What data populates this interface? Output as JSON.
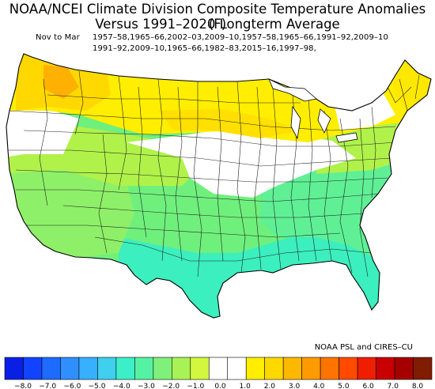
{
  "title_line1": "NOAA/NCEI Climate Division Composite Temperature Anomalies (F)",
  "title_line2": "Versus 1991–2020 Longterm Average",
  "period_label": "Nov to Mar",
  "years_line1": "1957–58,1965–66,2002–03,2009–10,1957–58,1965–66,1991–92,2009–10",
  "years_line2": "1991–92,2009–10,1965–66,1982–83,2015–16,1997–98,",
  "credit": "NOAA PSL and CIRES–CU",
  "legend": {
    "ticks": [
      "−8.0",
      "−7.0",
      "−6.0",
      "−5.0",
      "−4.0",
      "−3.0",
      "−2.0",
      "−1.0",
      "0.0",
      "1.0",
      "2.0",
      "3.0",
      "4.0",
      "5.0",
      "6.0",
      "7.0",
      "8.0"
    ],
    "colors": [
      "#0a1fe6",
      "#1244ff",
      "#1e6bff",
      "#2f8fff",
      "#36b0ff",
      "#3fcfef",
      "#3cefc8",
      "#55f2a4",
      "#7ff07a",
      "#a8f255",
      "#d2f73e",
      "#ffffff",
      "#ffffff",
      "#ffee00",
      "#ffd800",
      "#ffb800",
      "#ff9a00",
      "#ff7400",
      "#ff4a00",
      "#f01e00",
      "#c80000",
      "#a50000",
      "#801c00"
    ]
  },
  "regions": [
    {
      "name": "northwest",
      "anomaly": 1.6,
      "color": "#ffe000"
    },
    {
      "name": "washington-core",
      "anomaly": 2.4,
      "color": "#ffb000"
    },
    {
      "name": "northern-tier",
      "anomaly": 1.1,
      "color": "#ffee00"
    },
    {
      "name": "northern-plains-yellow",
      "anomaly": 1.2,
      "color": "#ffe800"
    },
    {
      "name": "new-england",
      "anomaly": 1.2,
      "color": "#ffe800"
    },
    {
      "name": "central-band",
      "anomaly": 0.0,
      "color": "#ffffff"
    },
    {
      "name": "west-interior",
      "anomaly": -0.6,
      "color": "#b0f24a"
    },
    {
      "name": "southwest",
      "anomaly": -1.1,
      "color": "#8ef068"
    },
    {
      "name": "southern-plains",
      "anomaly": -1.4,
      "color": "#6ff07c"
    },
    {
      "name": "southeast",
      "anomaly": -1.6,
      "color": "#5ff095"
    },
    {
      "name": "gulf-coast",
      "anomaly": -2.1,
      "color": "#3cefbe"
    }
  ]
}
